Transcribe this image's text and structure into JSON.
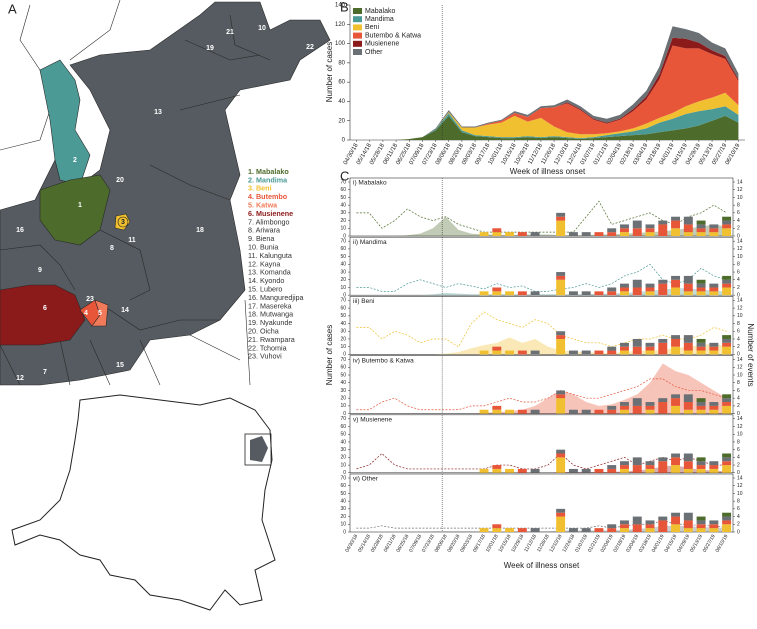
{
  "map": {
    "panel_label": "A",
    "zones": [
      {
        "number": "1",
        "label": "1. Mabalako",
        "color": "#4d6b2a"
      },
      {
        "number": "2",
        "label": "2. Mandima",
        "color": "#4c9a96"
      },
      {
        "number": "3",
        "label": "3. Beni",
        "color": "#f0c030"
      },
      {
        "number": "4",
        "label": "4. Butembo",
        "color": "#e8563a"
      },
      {
        "number": "5",
        "label": "5. Katwa",
        "color": "#f07a5a"
      },
      {
        "number": "6",
        "label": "6. Musienene",
        "color": "#8b1a1a"
      },
      {
        "number": "7",
        "label": "7. Alimbongo",
        "color": "#555b60"
      },
      {
        "number": "8",
        "label": "8. Ariwara",
        "color": "#555b60"
      },
      {
        "number": "9",
        "label": "9. Biena",
        "color": "#555b60"
      },
      {
        "number": "10",
        "label": "10. Bunia",
        "color": "#555b60"
      },
      {
        "number": "11",
        "label": "11. Kalunguta",
        "color": "#555b60"
      },
      {
        "number": "12",
        "label": "12. Kayna",
        "color": "#555b60"
      },
      {
        "number": "13",
        "label": "13. Komanda",
        "color": "#555b60"
      },
      {
        "number": "14",
        "label": "14. Kyondo",
        "color": "#555b60"
      },
      {
        "number": "15",
        "label": "15. Lubero",
        "color": "#555b60"
      },
      {
        "number": "16",
        "label": "16. Manguredjipa",
        "color": "#555b60"
      },
      {
        "number": "17",
        "label": "17. Masereka",
        "color": "#555b60"
      },
      {
        "number": "18",
        "label": "18. Mutwanga",
        "color": "#555b60"
      },
      {
        "number": "19",
        "label": "19. Nyakunde",
        "color": "#555b60"
      },
      {
        "number": "20",
        "label": "20. Oicha",
        "color": "#555b60"
      },
      {
        "number": "21",
        "label": "21. Rwampara",
        "color": "#555b60"
      },
      {
        "number": "22",
        "label": "22. Tchomia",
        "color": "#555b60"
      },
      {
        "number": "23",
        "label": "23. Vuhovi",
        "color": "#555b60"
      }
    ]
  },
  "chart_data": [
    {
      "type": "stackedarea",
      "panel_label": "B",
      "ylabel": "Number of cases",
      "xlabel": "Week of illness onset",
      "categories": [
        "04/30/18",
        "05/14/18",
        "05/28/18",
        "06/11/18",
        "06/25/18",
        "07/09/18",
        "07/23/18",
        "08/06/18",
        "08/20/18",
        "09/03/18",
        "09/17/18",
        "10/01/18",
        "10/15/18",
        "10/29/18",
        "11/12/18",
        "11/26/18",
        "12/10/18",
        "12/24/18",
        "01/07/19",
        "01/21/19",
        "02/04/19",
        "02/18/19",
        "03/04/19",
        "03/18/19",
        "04/01/19",
        "04/15/19",
        "04/29/19",
        "05/13/19",
        "05/27/19",
        "06/10/19"
      ],
      "ylim": [
        0,
        140
      ],
      "yticks": [
        0,
        20,
        40,
        60,
        80,
        100,
        120,
        140
      ],
      "series": [
        {
          "name": "Mabalako",
          "color": "#4d6b2a",
          "values": [
            0,
            0,
            0,
            0,
            1,
            3,
            10,
            25,
            8,
            4,
            3,
            2,
            2,
            3,
            2,
            3,
            2,
            1,
            2,
            3,
            4,
            5,
            6,
            8,
            10,
            12,
            15,
            20,
            25,
            18
          ]
        },
        {
          "name": "Mandima",
          "color": "#4c9a96",
          "values": [
            0,
            0,
            0,
            0,
            0,
            0,
            1,
            3,
            2,
            1,
            1,
            1,
            1,
            1,
            1,
            1,
            1,
            1,
            1,
            2,
            3,
            4,
            6,
            10,
            12,
            15,
            15,
            12,
            10,
            8
          ]
        },
        {
          "name": "Beni",
          "color": "#f0c030",
          "values": [
            0,
            0,
            0,
            0,
            0,
            0,
            0,
            1,
            3,
            8,
            12,
            15,
            22,
            15,
            20,
            10,
            5,
            4,
            3,
            2,
            2,
            3,
            5,
            5,
            6,
            8,
            10,
            12,
            14,
            10
          ]
        },
        {
          "name": "Butembo & Katwa",
          "color": "#e8563a",
          "values": [
            0,
            0,
            0,
            0,
            0,
            0,
            0,
            0,
            0,
            0,
            1,
            2,
            3,
            5,
            10,
            20,
            30,
            25,
            15,
            10,
            12,
            18,
            25,
            40,
            70,
            60,
            55,
            45,
            35,
            25
          ]
        },
        {
          "name": "Musienene",
          "color": "#8b1a1a",
          "values": [
            0,
            0,
            0,
            0,
            0,
            0,
            0,
            0,
            0,
            0,
            0,
            0,
            0,
            0,
            0,
            0,
            1,
            1,
            1,
            1,
            1,
            2,
            3,
            5,
            8,
            10,
            6,
            4,
            3,
            2
          ]
        },
        {
          "name": "Other",
          "color": "#6b7075",
          "values": [
            0,
            0,
            0,
            0,
            0,
            0,
            1,
            2,
            1,
            1,
            1,
            1,
            2,
            2,
            2,
            2,
            3,
            3,
            3,
            4,
            4,
            5,
            6,
            8,
            12,
            10,
            10,
            8,
            8,
            6
          ]
        }
      ]
    },
    {
      "type": "panels",
      "panel_label": "C",
      "ylabel": "Number of cases",
      "y2label": "Number of events",
      "xlabel": "Week of illness onset",
      "ylim": [
        0,
        70
      ],
      "yticks": [
        0,
        10,
        20,
        30,
        40,
        50,
        60,
        70
      ],
      "y2lim": [
        0,
        14
      ],
      "y2ticks": [
        0,
        2,
        4,
        6,
        8,
        10,
        12,
        14
      ],
      "events": [
        {
          "color": "#f0c030",
          "values": [
            0,
            0,
            0,
            0,
            0,
            0,
            0,
            0,
            0,
            0,
            1,
            1,
            1,
            0,
            0,
            0,
            4,
            0,
            0,
            0,
            0,
            1,
            0,
            1,
            0,
            2,
            1,
            1,
            1,
            2
          ]
        },
        {
          "color": "#e8563a",
          "values": [
            0,
            0,
            0,
            0,
            0,
            0,
            0,
            0,
            0,
            0,
            0,
            1,
            0,
            1,
            0,
            0,
            1,
            0,
            0,
            1,
            1,
            1,
            2,
            1,
            3,
            2,
            2,
            1,
            1,
            1
          ]
        },
        {
          "color": "#6b7075",
          "values": [
            0,
            0,
            0,
            0,
            0,
            0,
            0,
            0,
            0,
            0,
            0,
            0,
            0,
            0,
            1,
            0,
            1,
            1,
            1,
            0,
            1,
            1,
            2,
            1,
            1,
            1,
            2,
            1,
            1,
            1
          ]
        },
        {
          "color": "#4d6b2a",
          "values": [
            0,
            0,
            0,
            0,
            0,
            0,
            0,
            0,
            0,
            0,
            0,
            0,
            0,
            0,
            0,
            0,
            0,
            0,
            0,
            0,
            0,
            0,
            0,
            0,
            0,
            0,
            0,
            1,
            0,
            1
          ]
        }
      ],
      "panels": [
        {
          "title": "i) Mabalako",
          "color": "#4d6b2a",
          "cases": [
            0,
            0,
            0,
            0,
            1,
            3,
            10,
            25,
            8,
            3,
            2,
            2,
            1,
            2,
            2,
            2,
            1,
            1,
            1,
            2,
            2,
            3,
            4,
            5,
            6,
            8,
            10,
            12,
            15,
            12
          ],
          "line": [
            30,
            30,
            10,
            20,
            35,
            25,
            20,
            25,
            15,
            10,
            5,
            5,
            5,
            5,
            5,
            5,
            5,
            5,
            25,
            45,
            15,
            20,
            25,
            30,
            20,
            15,
            25,
            30,
            40,
            30
          ]
        },
        {
          "title": "ii) Mandima",
          "color": "#4c9a96",
          "cases": [
            0,
            0,
            0,
            0,
            0,
            0,
            1,
            3,
            2,
            1,
            1,
            1,
            1,
            1,
            1,
            1,
            1,
            1,
            1,
            2,
            2,
            3,
            4,
            6,
            7,
            9,
            9,
            7,
            6,
            5
          ],
          "line": [
            10,
            10,
            5,
            5,
            15,
            20,
            15,
            10,
            15,
            12,
            8,
            15,
            10,
            12,
            5,
            5,
            8,
            10,
            15,
            10,
            15,
            25,
            30,
            40,
            20,
            15,
            20,
            35,
            25,
            20
          ]
        },
        {
          "title": "iii) Beni",
          "color": "#f0c030",
          "cases": [
            0,
            0,
            0,
            0,
            0,
            0,
            0,
            1,
            3,
            8,
            12,
            15,
            22,
            15,
            20,
            10,
            5,
            4,
            3,
            2,
            2,
            3,
            5,
            5,
            6,
            8,
            10,
            12,
            14,
            10
          ],
          "line": [
            35,
            35,
            20,
            30,
            25,
            15,
            20,
            20,
            10,
            40,
            55,
            45,
            40,
            35,
            45,
            40,
            25,
            20,
            15,
            15,
            10,
            15,
            20,
            20,
            25,
            20,
            20,
            25,
            35,
            30
          ]
        },
        {
          "title": "iv) Butembo & Katwa",
          "color": "#e8563a",
          "cases": [
            0,
            0,
            0,
            0,
            0,
            0,
            0,
            0,
            0,
            0,
            1,
            2,
            3,
            5,
            10,
            20,
            30,
            25,
            15,
            10,
            12,
            18,
            25,
            40,
            65,
            55,
            50,
            40,
            30,
            20
          ],
          "line": [
            5,
            5,
            15,
            20,
            10,
            5,
            5,
            5,
            5,
            10,
            10,
            15,
            20,
            15,
            15,
            20,
            30,
            25,
            20,
            20,
            25,
            30,
            35,
            45,
            45,
            35,
            30,
            30,
            25,
            20
          ]
        },
        {
          "title": "v) Musienene",
          "color": "#8b1a1a",
          "cases": [
            0,
            0,
            0,
            0,
            0,
            0,
            0,
            0,
            0,
            0,
            0,
            0,
            0,
            0,
            0,
            0,
            1,
            1,
            1,
            1,
            1,
            2,
            3,
            5,
            8,
            10,
            6,
            4,
            3,
            2
          ],
          "line": [
            5,
            10,
            25,
            10,
            5,
            5,
            5,
            5,
            5,
            5,
            5,
            10,
            10,
            5,
            5,
            10,
            25,
            10,
            5,
            10,
            15,
            20,
            10,
            15,
            20,
            15,
            20,
            15,
            10,
            10
          ]
        },
        {
          "title": "vi) Other",
          "color": "#6b7075",
          "cases": [
            0,
            0,
            0,
            0,
            0,
            0,
            1,
            1,
            1,
            1,
            1,
            1,
            1,
            1,
            1,
            1,
            2,
            2,
            2,
            2,
            2,
            3,
            4,
            5,
            8,
            8,
            8,
            6,
            6,
            5
          ],
          "line": [
            5,
            5,
            8,
            5,
            5,
            5,
            5,
            5,
            5,
            5,
            5,
            5,
            5,
            5,
            5,
            5,
            5,
            5,
            5,
            8,
            5,
            8,
            10,
            10,
            15,
            10,
            10,
            8,
            8,
            6
          ]
        }
      ]
    }
  ]
}
